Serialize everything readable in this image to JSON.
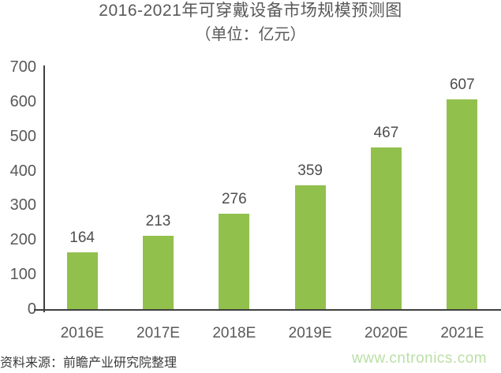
{
  "page": {
    "title": "2016-2021年可穿戴设备市场规模预测图",
    "subtitle": "（单位：亿元）",
    "source": "资料来源：前瞻产业研究院整理",
    "watermark": "www.cntronics.com"
  },
  "colors": {
    "bar": "#92C04D",
    "title_text": "#595959",
    "axis_line": "#3F3F3F",
    "value_label_text": "#4D4D4D",
    "source_text": "#3A3A3A",
    "watermark_text": "#BADFA5",
    "background": "#FFFFFF"
  },
  "chart_data": {
    "type": "bar",
    "title": "2016-2021年可穿戴设备市场规模预测图",
    "subtitle": "（单位：亿元）",
    "unit": "亿元",
    "categories": [
      "2016E",
      "2017E",
      "2018E",
      "2019E",
      "2020E",
      "2021E"
    ],
    "values": [
      164,
      213,
      276,
      359,
      467,
      607
    ],
    "xlabel": "",
    "ylabel": "",
    "ylim": [
      0,
      700
    ],
    "yticks": [
      0,
      100,
      200,
      300,
      400,
      500,
      600,
      700
    ],
    "grid": false,
    "legend_position": "none",
    "bar_color": "#92C04D",
    "data_labels": true
  }
}
